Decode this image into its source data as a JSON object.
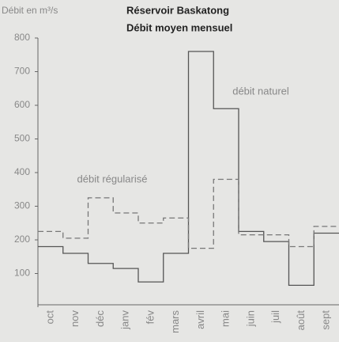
{
  "chart_data": {
    "type": "step",
    "title": "Réservoir Baskatong",
    "subtitle": "Débit moyen mensuel",
    "y_label": "Débit en m³/s",
    "categories": [
      "oct",
      "nov",
      "déc",
      "janv",
      "fév",
      "mars",
      "avril",
      "mai",
      "juin",
      "juil",
      "août",
      "sept"
    ],
    "series": [
      {
        "name": "débit naturel",
        "color": "#555555",
        "dashed": false,
        "values": [
          180,
          160,
          130,
          115,
          75,
          160,
          760,
          590,
          225,
          195,
          65,
          220
        ]
      },
      {
        "name": "débit régularisé",
        "color": "#777777",
        "dashed": true,
        "values": [
          225,
          205,
          325,
          280,
          250,
          265,
          175,
          380,
          215,
          215,
          180,
          240
        ]
      }
    ],
    "ylim": [
      0,
      800
    ],
    "yticks": [
      100,
      200,
      300,
      400,
      500,
      600,
      700,
      800
    ]
  }
}
